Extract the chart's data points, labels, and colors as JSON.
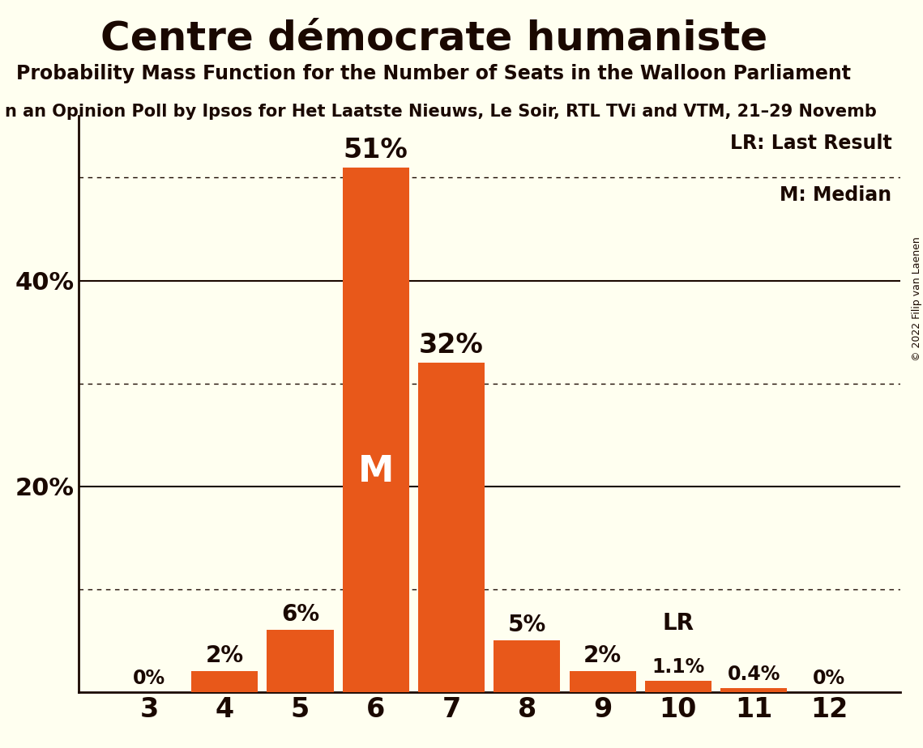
{
  "title": "Centre démocrate humaniste",
  "subtitle": "Probability Mass Function for the Number of Seats in the Walloon Parliament",
  "sub_subtitle_display": "n an Opinion Poll by Ipsos for Het Laatste Nieuws, Le Soir, RTL TVi and VTM, 21–29 Novemb",
  "copyright": "© 2022 Filip van Laenen",
  "categories": [
    3,
    4,
    5,
    6,
    7,
    8,
    9,
    10,
    11,
    12
  ],
  "values": [
    0.0,
    2.0,
    6.0,
    51.0,
    32.0,
    5.0,
    2.0,
    1.1,
    0.4,
    0.0
  ],
  "bar_color": "#E8581A",
  "background_color": "#FFFFF0",
  "label_color": "#1a0800",
  "bar_labels": [
    "0%",
    "2%",
    "6%",
    "51%",
    "32%",
    "5%",
    "2%",
    "1.1%",
    "0.4%",
    "0%"
  ],
  "median_bar_index": 3,
  "lr_bar_index": 7,
  "ylim": [
    0,
    56
  ],
  "yticks": [
    0,
    20,
    40
  ],
  "ytick_labels": [
    "",
    "20%",
    "40%"
  ],
  "solid_gridlines": [
    20,
    40
  ],
  "dotted_gridlines": [
    10,
    30,
    50
  ],
  "legend_lr": "LR: Last Result",
  "legend_m": "M: Median",
  "title_fontsize": 36,
  "subtitle_fontsize": 17,
  "sub_subtitle_fontsize": 15,
  "bar_label_fontsize_large": 24,
  "bar_label_fontsize_medium": 20,
  "bar_label_fontsize_small": 17,
  "ytick_fontsize": 22,
  "xtick_fontsize": 24,
  "legend_fontsize": 17,
  "median_fontsize": 32
}
